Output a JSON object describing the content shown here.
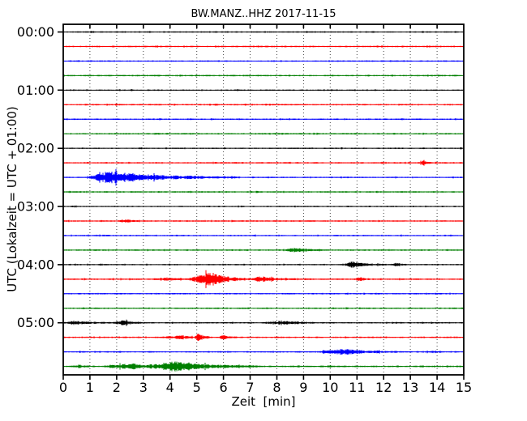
{
  "chart_data": {
    "type": "line",
    "subtype": "seismogram-dayplot-helicorder",
    "title": "BW.MANZ..HHZ 2017-11-15",
    "xlabel": "Zeit  [min]",
    "ylabel": "UTC (Lokalzeit = UTC + 01:00)",
    "xlim": [
      0,
      15
    ],
    "x_ticks": [
      0,
      1,
      2,
      3,
      4,
      5,
      6,
      7,
      8,
      9,
      10,
      11,
      12,
      13,
      14,
      15
    ],
    "grid": "vertical dashed gridlines at every minute",
    "legend": "none",
    "minutes_per_row": 15,
    "row_color_cycle": [
      "#000000",
      "#ff0000",
      "#0000ff",
      "#007f00"
    ],
    "y_ticks": [
      {
        "label": "00:00",
        "row": 0
      },
      {
        "label": "01:00",
        "row": 4
      },
      {
        "label": "02:00",
        "row": 8
      },
      {
        "label": "03:00",
        "row": 12
      },
      {
        "label": "04:00",
        "row": 16
      },
      {
        "label": "05:00",
        "row": 20
      }
    ],
    "events_format": "[start_min, peak_min, end_min, peak_half_amplitude_px]",
    "rows": [
      {
        "start_time": "00:00",
        "color": "#000000",
        "noise": 0.85,
        "events": []
      },
      {
        "start_time": "00:15",
        "color": "#ff0000",
        "noise": 0.9,
        "events": []
      },
      {
        "start_time": "00:30",
        "color": "#0000ff",
        "noise": 0.85,
        "events": []
      },
      {
        "start_time": "00:45",
        "color": "#007f00",
        "noise": 0.9,
        "events": []
      },
      {
        "start_time": "01:00",
        "color": "#000000",
        "noise": 0.8,
        "events": []
      },
      {
        "start_time": "01:15",
        "color": "#ff0000",
        "noise": 0.9,
        "events": []
      },
      {
        "start_time": "01:30",
        "color": "#0000ff",
        "noise": 0.85,
        "events": []
      },
      {
        "start_time": "01:45",
        "color": "#007f00",
        "noise": 0.9,
        "events": []
      },
      {
        "start_time": "02:00",
        "color": "#000000",
        "noise": 0.8,
        "events": []
      },
      {
        "start_time": "02:15",
        "color": "#ff0000",
        "noise": 0.9,
        "events": [
          [
            13.3,
            13.5,
            13.8,
            2.2
          ]
        ]
      },
      {
        "start_time": "02:30",
        "color": "#0000ff",
        "noise": 0.85,
        "events": [
          [
            0.85,
            1.7,
            6.6,
            7.2
          ],
          [
            2.15,
            2.4,
            2.9,
            3.2
          ]
        ]
      },
      {
        "start_time": "02:45",
        "color": "#007f00",
        "noise": 0.9,
        "events": []
      },
      {
        "start_time": "03:00",
        "color": "#000000",
        "noise": 0.8,
        "events": []
      },
      {
        "start_time": "03:15",
        "color": "#ff0000",
        "noise": 0.9,
        "events": [
          [
            2.0,
            2.35,
            2.9,
            1.6
          ]
        ]
      },
      {
        "start_time": "03:30",
        "color": "#0000ff",
        "noise": 0.85,
        "events": []
      },
      {
        "start_time": "03:45",
        "color": "#007f00",
        "noise": 0.9,
        "events": [
          [
            8.2,
            8.75,
            9.7,
            2.3
          ]
        ]
      },
      {
        "start_time": "04:00",
        "color": "#000000",
        "noise": 0.8,
        "events": [
          [
            10.45,
            10.8,
            12.1,
            3.6
          ],
          [
            12.25,
            12.5,
            12.9,
            1.6
          ]
        ]
      },
      {
        "start_time": "04:15",
        "color": "#ff0000",
        "noise": 0.95,
        "events": [
          [
            3.3,
            3.95,
            4.6,
            1.4
          ],
          [
            4.65,
            5.45,
            7.05,
            8.5
          ],
          [
            7.1,
            7.35,
            8.7,
            3.6
          ],
          [
            10.85,
            11.1,
            11.6,
            2.0
          ]
        ]
      },
      {
        "start_time": "04:30",
        "color": "#0000ff",
        "noise": 0.85,
        "events": []
      },
      {
        "start_time": "04:45",
        "color": "#007f00",
        "noise": 0.9,
        "events": []
      },
      {
        "start_time": "05:00",
        "color": "#000000",
        "noise": 0.85,
        "events": [
          [
            0.0,
            0.4,
            2.0,
            1.7
          ],
          [
            1.85,
            2.25,
            3.1,
            2.9
          ],
          [
            7.4,
            8.4,
            10.1,
            1.7
          ]
        ]
      },
      {
        "start_time": "05:15",
        "color": "#ff0000",
        "noise": 0.9,
        "events": [
          [
            3.6,
            4.5,
            5.0,
            1.9
          ],
          [
            4.9,
            5.07,
            5.6,
            4.4
          ],
          [
            5.75,
            6.0,
            6.6,
            1.9
          ]
        ]
      },
      {
        "start_time": "05:30",
        "color": "#0000ff",
        "noise": 0.85,
        "events": [
          [
            9.4,
            10.5,
            12.7,
            3.0
          ],
          [
            13.55,
            13.8,
            14.2,
            1.1
          ]
        ]
      },
      {
        "start_time": "05:45",
        "color": "#007f00",
        "noise": 0.95,
        "events": [
          [
            0.3,
            0.6,
            1.1,
            1.5
          ],
          [
            1.4,
            2.6,
            3.4,
            3.2
          ],
          [
            2.8,
            4.15,
            7.4,
            5.5
          ]
        ]
      }
    ]
  }
}
